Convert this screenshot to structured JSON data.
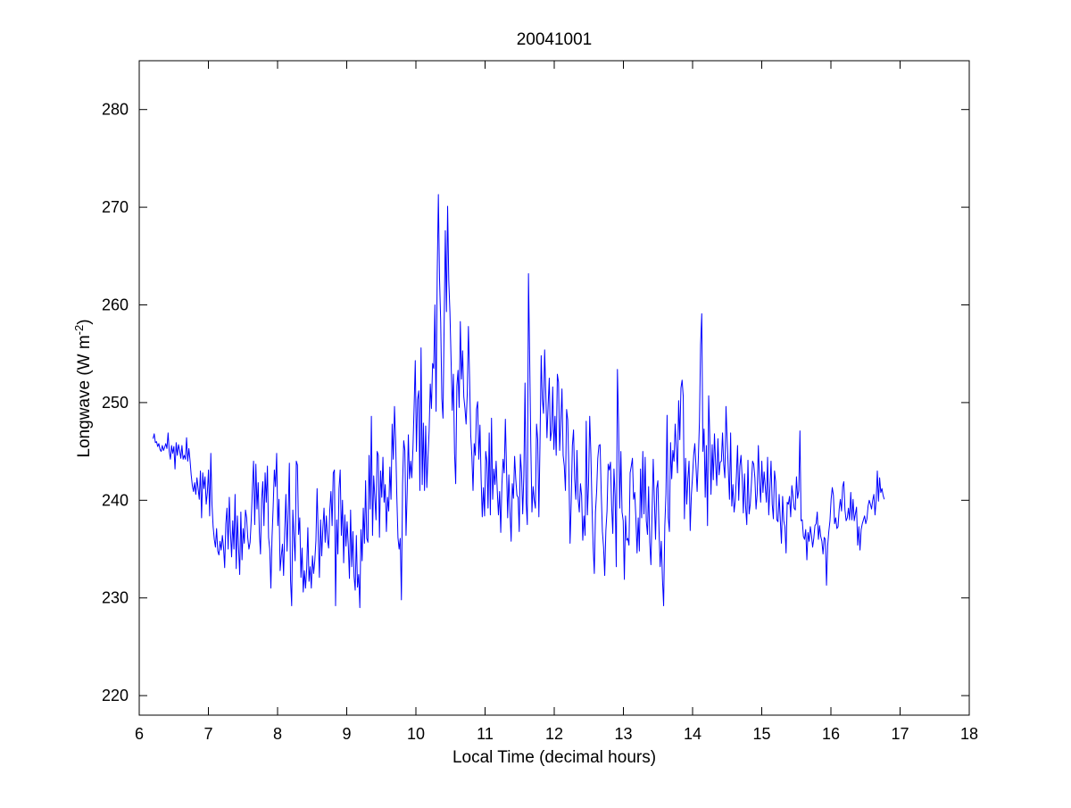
{
  "chart_data": {
    "type": "line",
    "title": "20041001",
    "xlabel": "Local Time (decimal hours)",
    "ylabel": {
      "prefix": "Longwave (W m",
      "superscript": "-2",
      "suffix": ")"
    },
    "xlim": [
      6,
      18
    ],
    "ylim": [
      218,
      285
    ],
    "xticks": [
      6,
      7,
      8,
      9,
      10,
      11,
      12,
      13,
      14,
      15,
      16,
      17,
      18
    ],
    "yticks": [
      220,
      230,
      240,
      250,
      260,
      270,
      280
    ],
    "grid": false,
    "legend": "none",
    "series": [
      {
        "color": "#0000ff",
        "x_start": 6.2,
        "x_step": 0.0167,
        "values": [
          246.3,
          246.8,
          245.9,
          246.0,
          245.5,
          245.8,
          245.2,
          245.0,
          245.6,
          245.1,
          245.4,
          245.8,
          245.3,
          246.9,
          245.0,
          244.2,
          245.6,
          244.8,
          245.5,
          243.2,
          245.9,
          244.6,
          245.7,
          245.1,
          244.3,
          245.6,
          244.2,
          244.6,
          244.2,
          246.4,
          244.0,
          245.3,
          244.1,
          242.6,
          241.5,
          240.9,
          241.8,
          240.6,
          242.3,
          241.2,
          240.1,
          243.0,
          238.2,
          242.8,
          241.2,
          242.4,
          239.6,
          240.8,
          243.1,
          238.4,
          244.8,
          239.6,
          237.3,
          236.0,
          235.2,
          237.1,
          234.8,
          234.4,
          235.8,
          234.9,
          236.4,
          235.2,
          233.1,
          237.6,
          239.2,
          235.0,
          240.3,
          236.8,
          234.2,
          237.9,
          235.0,
          240.6,
          233.0,
          238.4,
          235.2,
          232.4,
          238.8,
          233.9,
          237.1,
          235.6,
          239.0,
          238.2,
          236.1,
          235.0,
          235.7,
          238.0,
          241.2,
          244.0,
          237.5,
          243.7,
          239.1,
          241.8,
          236.8,
          234.5,
          240.1,
          241.9,
          237.4,
          242.8,
          239.8,
          243.5,
          236.2,
          235.0,
          231.0,
          236.2,
          239.4,
          243.1,
          241.4,
          244.8,
          237.4,
          240.1,
          232.8,
          234.3,
          235.5,
          232.3,
          236.9,
          240.6,
          234.8,
          238.7,
          243.8,
          231.8,
          229.2,
          239.0,
          236.2,
          233.8,
          244.0,
          243.6,
          236.5,
          238.2,
          232.1,
          235.1,
          230.6,
          232.8,
          231.0,
          233.0,
          237.2,
          231.7,
          233.2,
          231.0,
          234.3,
          232.5,
          233.8,
          235.9,
          241.2,
          236.4,
          232.1,
          238.0,
          234.3,
          237.1,
          239.2,
          235.7,
          238.4,
          236.0,
          235.1,
          239.0,
          240.9,
          237.4,
          242.8,
          243.1,
          229.2,
          238.0,
          234.5,
          241.2,
          243.1,
          236.4,
          240.0,
          233.6,
          238.5,
          235.3,
          237.8,
          235.4,
          232.0,
          239.0,
          233.2,
          236.8,
          232.2,
          230.8,
          236.4,
          231.1,
          232.4,
          229.0,
          237.0,
          233.8,
          239.2,
          235.6,
          242.0,
          236.1,
          235.7,
          244.6,
          239.1,
          248.6,
          236.4,
          242.5,
          240.3,
          238.0,
          245.0,
          244.6,
          236.2,
          243.0,
          240.3,
          244.4,
          239.8,
          241.6,
          236.8,
          240.3,
          238.9,
          243.4,
          240.1,
          247.8,
          244.2,
          249.6,
          246.1,
          240.5,
          236.2,
          235.0,
          236.1,
          229.8,
          241.6,
          246.1,
          245.1,
          236.4,
          240.9,
          246.7,
          242.2,
          244.0,
          242.3,
          245.4,
          249.6,
          254.3,
          245.0,
          250.3,
          251.2,
          241.0,
          255.6,
          241.6,
          247.9,
          241.0,
          247.6,
          241.3,
          244.4,
          247.1,
          251.9,
          249.4,
          254.0,
          253.5,
          260.0,
          249.1,
          263.2,
          271.3,
          262.7,
          258.3,
          250.4,
          248.4,
          258.1,
          267.6,
          259.3,
          270.1,
          262.5,
          259.3,
          254.3,
          249.2,
          252.9,
          244.8,
          241.7,
          251.7,
          253.3,
          249.5,
          258.3,
          252.4,
          255.3,
          250.6,
          249.4,
          247.8,
          250.9,
          257.8,
          252.6,
          246.7,
          244.5,
          241.0,
          245.8,
          244.6,
          249.3,
          250.1,
          244.2,
          247.7,
          242.2,
          238.3,
          241.3,
          238.4,
          245.0,
          244.0,
          239.2,
          246.9,
          238.5,
          248.4,
          240.1,
          243.2,
          241.6,
          244.0,
          240.9,
          238.5,
          240.9,
          236.7,
          241.6,
          244.2,
          242.8,
          248.3,
          243.2,
          238.2,
          242.6,
          238.8,
          235.8,
          241.7,
          240.2,
          244.5,
          242.2,
          240.5,
          240.3,
          236.8,
          244.7,
          242.8,
          238.6,
          242.6,
          252.0,
          239.7,
          237.5,
          263.2,
          254.8,
          245.8,
          238.8,
          241.4,
          240.0,
          239.2,
          247.8,
          246.2,
          238.3,
          246.0,
          254.8,
          250.4,
          248.9,
          255.4,
          250.9,
          246.4,
          249.7,
          252.5,
          246.1,
          247.1,
          251.6,
          245.2,
          248.6,
          244.6,
          252.9,
          252.1,
          245.1,
          248.1,
          251.4,
          244.6,
          243.5,
          241.0,
          249.3,
          248.2,
          243.0,
          235.6,
          239.8,
          245.6,
          247.2,
          242.1,
          240.1,
          245.1,
          240.1,
          238.8,
          241.7,
          240.5,
          235.9,
          238.4,
          236.4,
          248.1,
          238.5,
          241.7,
          248.6,
          244.8,
          239.4,
          235.2,
          232.5,
          238.8,
          240.9,
          244.3,
          245.6,
          245.7,
          240.7,
          236.8,
          235.2,
          232.3,
          236.9,
          238.9,
          243.7,
          243.1,
          243.9,
          239.4,
          236.6,
          243.2,
          240.4,
          233.2,
          253.4,
          247.7,
          239.2,
          245.0,
          238.8,
          237.9,
          231.9,
          238.4,
          235.9,
          236.1,
          235.4,
          242.8,
          243.5,
          244.3,
          240.1,
          240.8,
          238.1,
          234.6,
          238.2,
          234.8,
          243.2,
          238.2,
          245.0,
          238.6,
          244.4,
          237.9,
          236.5,
          241.4,
          235.7,
          233.4,
          238.7,
          244.2,
          240.0,
          236.0,
          241.2,
          242.0,
          237.0,
          233.2,
          235.8,
          231.9,
          229.2,
          237.3,
          240.6,
          248.7,
          238.2,
          236.8,
          245.9,
          242.2,
          245.1,
          244.0,
          247.8,
          245.3,
          242.8,
          250.2,
          246.2,
          251.5,
          252.3,
          250.6,
          238.1,
          244.3,
          239.6,
          242.2,
          244.0,
          236.9,
          240.5,
          242.4,
          244.6,
          245.8,
          243.5,
          240.9,
          244.1,
          248.0,
          255.9,
          259.1,
          245.0,
          247.3,
          240.3,
          245.6,
          237.4,
          250.7,
          246.3,
          240.6,
          245.7,
          242.1,
          246.8,
          243.8,
          241.5,
          246.3,
          242.6,
          243.9,
          244.0,
          246.9,
          243.7,
          242.3,
          249.6,
          246.2,
          243.1,
          240.1,
          246.9,
          239.4,
          241.6,
          238.8,
          239.9,
          242.5,
          245.6,
          240.0,
          243.5,
          244.6,
          242.3,
          238.7,
          242.7,
          239.3,
          237.5,
          244.1,
          238.6,
          239.6,
          241.7,
          244.0,
          243.7,
          242.3,
          239.1,
          240.7,
          245.6,
          242.0,
          239.8,
          244.0,
          240.8,
          242.9,
          241.4,
          239.8,
          244.4,
          238.5,
          241.2,
          244.0,
          239.6,
          238.1,
          243.0,
          241.9,
          238.0,
          237.8,
          240.6,
          238.0,
          235.6,
          240.4,
          237.9,
          237.3,
          234.6,
          239.8,
          239.6,
          240.4,
          238.3,
          241.5,
          240.4,
          239.2,
          239.0,
          242.4,
          240.2,
          241.0,
          247.1,
          237.9,
          238.0,
          236.3,
          236.0,
          237.0,
          233.9,
          236.7,
          235.8,
          237.3,
          236.4,
          235.2,
          236.1,
          237.4,
          237.6,
          238.8,
          236.0,
          237.4,
          236.3,
          235.8,
          234.5,
          236.2,
          236.0,
          231.3,
          235.3,
          236.8,
          237.9,
          240.1,
          241.3,
          240.5,
          237.6,
          238.2,
          237.1,
          237.3,
          239.1,
          240.1,
          238.9,
          241.4,
          241.9,
          239.0,
          237.9,
          238.2,
          239.2,
          238.0,
          240.8,
          238.0,
          240.1,
          237.9,
          238.6,
          239.3,
          235.4,
          237.3,
          234.9,
          237.0,
          237.6,
          238.0,
          238.4,
          237.6,
          238.1,
          239.4,
          240.0,
          239.6,
          239.1,
          240.0,
          240.6,
          238.5,
          240.0,
          243.0,
          239.9,
          242.3,
          240.8,
          241.2,
          240.5,
          240.1
        ]
      }
    ]
  }
}
